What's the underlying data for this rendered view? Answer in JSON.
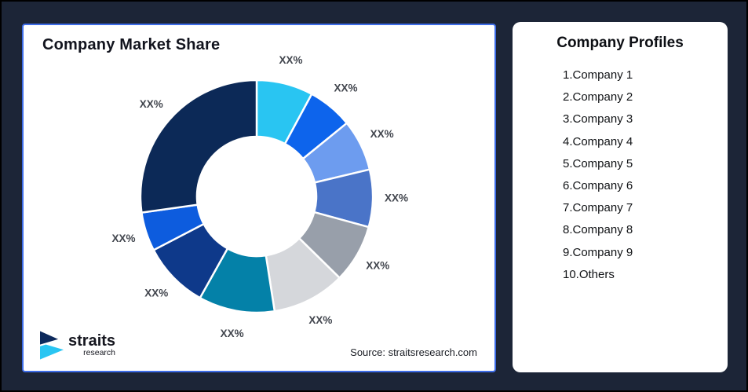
{
  "page": {
    "background_color": "#1C2537",
    "source_note": "Source: straitsresearch.com"
  },
  "chart_card": {
    "title": "Company Market Share",
    "border_color": "#3D6CE7"
  },
  "logo": {
    "brand": "straits",
    "brand_sub": "research",
    "icon_navy": "#0D2A5C",
    "icon_cyan": "#29C5F2"
  },
  "profiles_card": {
    "title": "Company Profiles",
    "items": [
      "1.Company 1",
      "2.Company 2",
      "3.Company 3",
      "4.Company 4",
      "5.Company 5",
      "6.Company 6",
      "7.Company 7",
      "8.Company 8",
      "9.Company 9",
      "10.Others"
    ]
  },
  "chart_data": {
    "type": "donut",
    "title": "Company Market Share",
    "legend_position": "none",
    "values_masked_as": "XX%",
    "start_angle_deg": 0,
    "direction": "clockwise",
    "segments": [
      {
        "label": "XX%",
        "span_deg": 28.3,
        "share_pct_est": 7.9,
        "color": "#29C5F2"
      },
      {
        "label": "XX%",
        "span_deg": 22.6,
        "share_pct_est": 6.3,
        "color": "#0D64EC"
      },
      {
        "label": "XX%",
        "span_deg": 25.7,
        "share_pct_est": 7.1,
        "color": "#6D9CEF"
      },
      {
        "label": "XX%",
        "span_deg": 28.7,
        "share_pct_est": 8.0,
        "color": "#4A74C8"
      },
      {
        "label": "XX%",
        "span_deg": 29.2,
        "share_pct_est": 8.1,
        "color": "#989FAA"
      },
      {
        "label": "XX%",
        "span_deg": 36.6,
        "share_pct_est": 10.2,
        "color": "#D5D7DB"
      },
      {
        "label": "XX%",
        "span_deg": 38.1,
        "share_pct_est": 10.6,
        "color": "#0481A8"
      },
      {
        "label": "XX%",
        "span_deg": 33.3,
        "share_pct_est": 9.2,
        "color": "#0E398A"
      },
      {
        "label": "XX%",
        "span_deg": 19.5,
        "share_pct_est": 5.4,
        "color": "#0D5CDE"
      },
      {
        "label": "XX%",
        "span_deg": 98.0,
        "share_pct_est": 27.2,
        "color": "#0C2957"
      }
    ]
  }
}
